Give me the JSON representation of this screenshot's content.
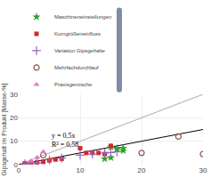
{
  "chart_data": {
    "type": "scatter",
    "ylabel": "Gipsgehalt im Produkt [Masse-%]",
    "xlim": [
      0,
      30
    ],
    "ylim": [
      0,
      30
    ],
    "xticks": [
      0,
      10,
      20,
      30
    ],
    "yticks": [
      0,
      10,
      20,
      30
    ],
    "grid": true,
    "legend": "upper left",
    "series": [
      {
        "type": "line",
        "color": "#aaaaaa",
        "x": [
          0,
          30
        ],
        "values": [
          0,
          30
        ]
      },
      {
        "type": "line",
        "color": "#000000",
        "x": [
          0,
          30
        ],
        "values": [
          0,
          15
        ]
      },
      {
        "name": "Maschineneinstellungen",
        "type": "scatter",
        "marker": "star",
        "x": [
          15,
          16,
          17,
          16,
          17,
          15,
          14
        ],
        "values": [
          7.5,
          7,
          7,
          6.5,
          6,
          3,
          2.5
        ]
      },
      {
        "name": "Korngrößeneinfluss",
        "type": "scatter",
        "marker": "square",
        "x": [
          1,
          2,
          3,
          4,
          5,
          6,
          7,
          10,
          11,
          12,
          13,
          14,
          15
        ],
        "values": [
          0.5,
          0.8,
          1,
          1.2,
          1.8,
          2.2,
          2.5,
          7,
          5,
          5,
          5,
          4.5,
          8
        ]
      },
      {
        "name": "Variation Gipsgehalte",
        "type": "scatter",
        "marker": "plus",
        "x": [
          1,
          2,
          3,
          5,
          7,
          10,
          12,
          14,
          15,
          16
        ],
        "values": [
          0.3,
          0.5,
          0.8,
          2,
          2.8,
          4,
          4.5,
          5,
          5.2,
          5.5
        ]
      },
      {
        "name": "Mehrfachdurchlauf",
        "type": "scatter",
        "marker": "open_circle",
        "x": [
          4,
          20,
          30,
          26
        ],
        "values": [
          4,
          5,
          4.5,
          12
        ]
      },
      {
        "name": "Praxisgemische",
        "type": "scatter",
        "marker": "triangle",
        "x": [
          2,
          3,
          4
        ],
        "values": [
          1.5,
          3,
          5.5
        ]
      }
    ],
    "annotations": [
      {
        "text": [
          "y = 0,5x",
          "R² = 0,58"
        ],
        "x": 5,
        "y": 15
      }
    ]
  }
}
